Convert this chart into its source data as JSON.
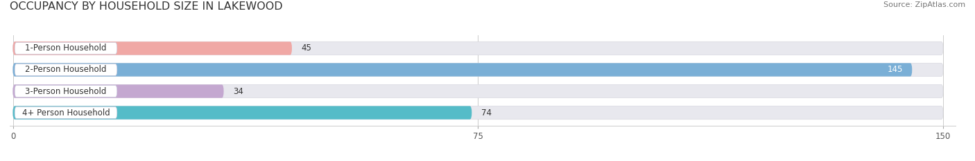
{
  "title": "OCCUPANCY BY HOUSEHOLD SIZE IN LAKEWOOD",
  "source": "Source: ZipAtlas.com",
  "categories": [
    "1-Person Household",
    "2-Person Household",
    "3-Person Household",
    "4+ Person Household"
  ],
  "values": [
    45,
    145,
    34,
    74
  ],
  "bar_colors": [
    "#f0a8a5",
    "#7aafd6",
    "#c4a8d0",
    "#55bcc8"
  ],
  "xlim_max": 150,
  "xticks": [
    0,
    75,
    150
  ],
  "background_color": "#ffffff",
  "bar_bg_color": "#e8e8ee",
  "title_fontsize": 11.5,
  "source_fontsize": 8,
  "label_fontsize": 8.5,
  "value_fontsize": 8.5
}
